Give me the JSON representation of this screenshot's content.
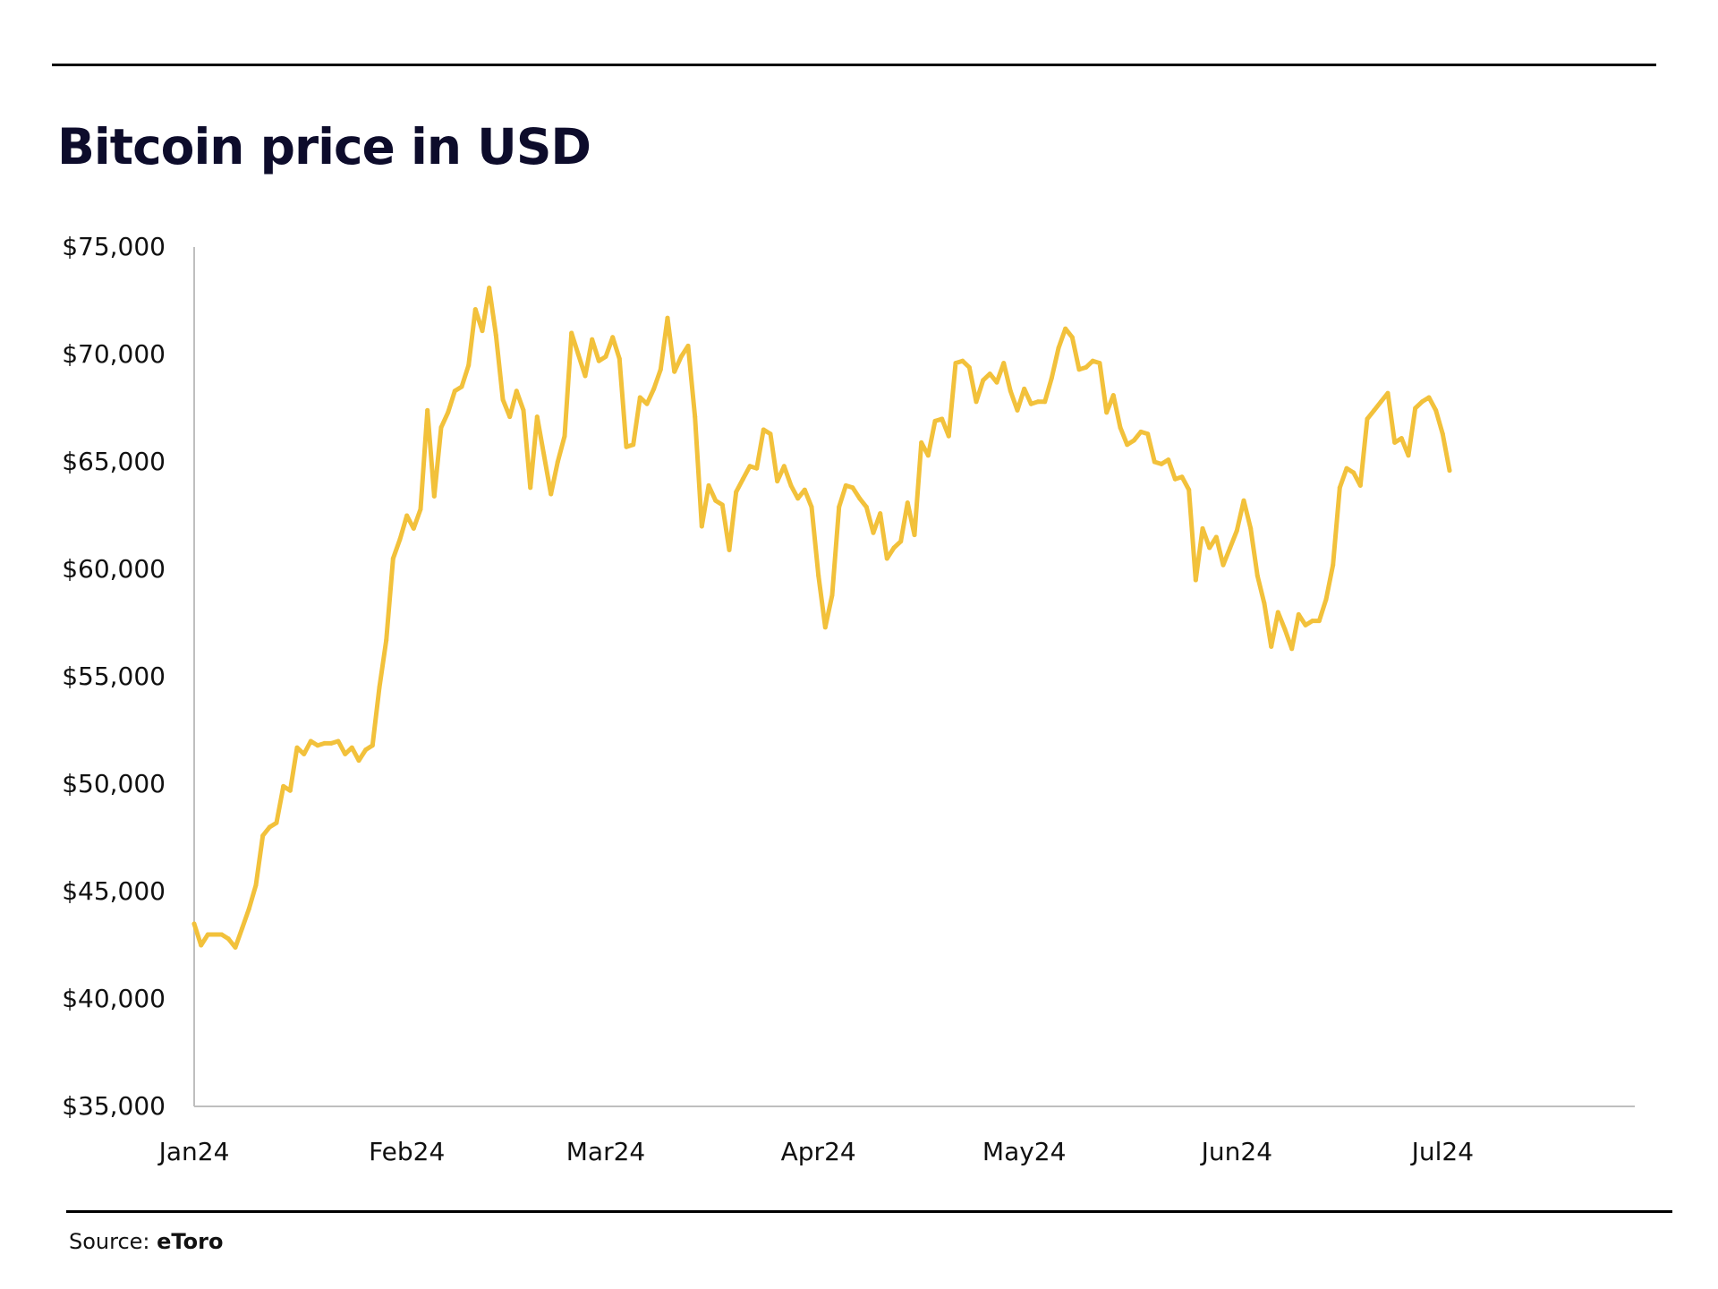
{
  "chart_data": {
    "type": "line",
    "title": "Bitcoin price in USD",
    "xlabel": "",
    "ylabel": "",
    "ylim": [
      35000,
      75000
    ],
    "y_ticks": [
      "$75,000",
      "$70,000",
      "$65,000",
      "$60,000",
      "$55,000",
      "$50,000",
      "$45,000",
      "$40,000",
      "$35,000"
    ],
    "y_tick_values": [
      75000,
      70000,
      65000,
      60000,
      55000,
      50000,
      45000,
      40000,
      35000
    ],
    "x_ticks": [
      "Jan24",
      "Feb24",
      "Mar24",
      "Apr24",
      "May24",
      "Jun24",
      "Jul24"
    ],
    "x_range": [
      "2024-01-01",
      "2024-07-29"
    ],
    "grid": false,
    "series": [
      {
        "color": "#f2c13b",
        "points": [
          [
            "2024-01-01",
            43500
          ],
          [
            "2024-01-02",
            42500
          ],
          [
            "2024-01-03",
            43000
          ],
          [
            "2024-01-04",
            43000
          ],
          [
            "2024-01-05",
            43000
          ],
          [
            "2024-01-06",
            42800
          ],
          [
            "2024-01-07",
            42400
          ],
          [
            "2024-01-08",
            43300
          ],
          [
            "2024-01-09",
            44200
          ],
          [
            "2024-01-10",
            45300
          ],
          [
            "2024-01-11",
            47600
          ],
          [
            "2024-01-12",
            48000
          ],
          [
            "2024-01-13",
            48200
          ],
          [
            "2024-01-14",
            49900
          ],
          [
            "2024-01-15",
            49700
          ],
          [
            "2024-01-16",
            51700
          ],
          [
            "2024-01-17",
            51400
          ],
          [
            "2024-01-18",
            52000
          ],
          [
            "2024-01-19",
            51800
          ],
          [
            "2024-01-20",
            51900
          ],
          [
            "2024-01-21",
            51900
          ],
          [
            "2024-01-22",
            52000
          ],
          [
            "2024-01-23",
            51400
          ],
          [
            "2024-01-24",
            51700
          ],
          [
            "2024-01-25",
            51100
          ],
          [
            "2024-01-26",
            51600
          ],
          [
            "2024-01-27",
            51800
          ],
          [
            "2024-01-28",
            54500
          ],
          [
            "2024-01-29",
            56700
          ],
          [
            "2024-01-30",
            60500
          ],
          [
            "2024-01-31",
            61400
          ],
          [
            "2024-02-01",
            62500
          ],
          [
            "2024-02-02",
            61900
          ],
          [
            "2024-02-03",
            62800
          ],
          [
            "2024-02-04",
            67400
          ],
          [
            "2024-02-05",
            63400
          ],
          [
            "2024-02-06",
            66600
          ],
          [
            "2024-02-07",
            67300
          ],
          [
            "2024-02-08",
            68300
          ],
          [
            "2024-02-09",
            68500
          ],
          [
            "2024-02-10",
            69500
          ],
          [
            "2024-02-11",
            72100
          ],
          [
            "2024-02-12",
            71100
          ],
          [
            "2024-02-13",
            73100
          ],
          [
            "2024-02-14",
            70900
          ],
          [
            "2024-02-15",
            67900
          ],
          [
            "2024-02-16",
            67100
          ],
          [
            "2024-02-17",
            68300
          ],
          [
            "2024-02-18",
            67400
          ],
          [
            "2024-02-19",
            63800
          ],
          [
            "2024-02-20",
            67100
          ],
          [
            "2024-02-21",
            65300
          ],
          [
            "2024-02-22",
            63500
          ],
          [
            "2024-02-23",
            65000
          ],
          [
            "2024-02-24",
            66200
          ],
          [
            "2024-02-25",
            71000
          ],
          [
            "2024-02-26",
            70000
          ],
          [
            "2024-02-27",
            69000
          ],
          [
            "2024-02-28",
            70700
          ],
          [
            "2024-02-29",
            69700
          ],
          [
            "2024-03-01",
            69900
          ],
          [
            "2024-03-02",
            70800
          ],
          [
            "2024-03-03",
            69800
          ],
          [
            "2024-03-04",
            65700
          ],
          [
            "2024-03-05",
            65800
          ],
          [
            "2024-03-06",
            68000
          ],
          [
            "2024-03-07",
            67700
          ],
          [
            "2024-03-08",
            68400
          ],
          [
            "2024-03-09",
            69300
          ],
          [
            "2024-03-10",
            71700
          ],
          [
            "2024-03-11",
            69200
          ],
          [
            "2024-03-12",
            69900
          ],
          [
            "2024-03-13",
            70400
          ],
          [
            "2024-03-14",
            67100
          ],
          [
            "2024-03-15",
            62000
          ],
          [
            "2024-03-16",
            63900
          ],
          [
            "2024-03-17",
            63200
          ],
          [
            "2024-03-18",
            63000
          ],
          [
            "2024-03-19",
            60900
          ],
          [
            "2024-03-20",
            63600
          ],
          [
            "2024-03-21",
            64200
          ],
          [
            "2024-03-22",
            64800
          ],
          [
            "2024-03-23",
            64700
          ],
          [
            "2024-03-24",
            66500
          ],
          [
            "2024-03-25",
            66300
          ],
          [
            "2024-03-26",
            64100
          ],
          [
            "2024-03-27",
            64800
          ],
          [
            "2024-03-28",
            63900
          ],
          [
            "2024-03-29",
            63300
          ],
          [
            "2024-03-30",
            63700
          ],
          [
            "2024-03-31",
            62900
          ],
          [
            "2024-04-01",
            59700
          ],
          [
            "2024-04-02",
            57300
          ],
          [
            "2024-04-03",
            58800
          ],
          [
            "2024-04-04",
            62900
          ],
          [
            "2024-04-05",
            63900
          ],
          [
            "2024-04-06",
            63800
          ],
          [
            "2024-04-07",
            63300
          ],
          [
            "2024-04-08",
            62900
          ],
          [
            "2024-04-09",
            61700
          ],
          [
            "2024-04-10",
            62600
          ],
          [
            "2024-04-11",
            60500
          ],
          [
            "2024-04-12",
            61000
          ],
          [
            "2024-04-13",
            61300
          ],
          [
            "2024-04-14",
            63100
          ],
          [
            "2024-04-15",
            61600
          ],
          [
            "2024-04-16",
            65900
          ],
          [
            "2024-04-17",
            65300
          ],
          [
            "2024-04-18",
            66900
          ],
          [
            "2024-04-19",
            67000
          ],
          [
            "2024-04-20",
            66200
          ],
          [
            "2024-04-21",
            69600
          ],
          [
            "2024-04-22",
            69700
          ],
          [
            "2024-04-23",
            69400
          ],
          [
            "2024-04-24",
            67800
          ],
          [
            "2024-04-25",
            68800
          ],
          [
            "2024-04-26",
            69100
          ],
          [
            "2024-04-27",
            68700
          ],
          [
            "2024-04-28",
            69600
          ],
          [
            "2024-04-29",
            68300
          ],
          [
            "2024-04-30",
            67400
          ],
          [
            "2024-05-01",
            68400
          ],
          [
            "2024-05-02",
            67700
          ],
          [
            "2024-05-03",
            67800
          ],
          [
            "2024-05-04",
            67800
          ],
          [
            "2024-05-05",
            68900
          ],
          [
            "2024-05-06",
            70300
          ],
          [
            "2024-05-07",
            71200
          ],
          [
            "2024-05-08",
            70800
          ],
          [
            "2024-05-09",
            69300
          ],
          [
            "2024-05-10",
            69400
          ],
          [
            "2024-05-11",
            69700
          ],
          [
            "2024-05-12",
            69600
          ],
          [
            "2024-05-13",
            67300
          ],
          [
            "2024-05-14",
            68100
          ],
          [
            "2024-05-15",
            66600
          ],
          [
            "2024-05-16",
            65800
          ],
          [
            "2024-05-17",
            66000
          ],
          [
            "2024-05-18",
            66400
          ],
          [
            "2024-05-19",
            66300
          ],
          [
            "2024-05-20",
            65000
          ],
          [
            "2024-05-21",
            64900
          ],
          [
            "2024-05-22",
            65100
          ],
          [
            "2024-05-23",
            64200
          ],
          [
            "2024-05-24",
            64300
          ],
          [
            "2024-05-25",
            63700
          ],
          [
            "2024-05-26",
            59500
          ],
          [
            "2024-05-27",
            61900
          ],
          [
            "2024-05-28",
            61000
          ],
          [
            "2024-05-29",
            61500
          ],
          [
            "2024-05-30",
            60200
          ],
          [
            "2024-05-31",
            61000
          ],
          [
            "2024-06-01",
            61800
          ],
          [
            "2024-06-02",
            63200
          ],
          [
            "2024-06-03",
            61900
          ],
          [
            "2024-06-04",
            59700
          ],
          [
            "2024-06-05",
            58400
          ],
          [
            "2024-06-06",
            56400
          ],
          [
            "2024-06-07",
            58000
          ],
          [
            "2024-06-08",
            57200
          ],
          [
            "2024-06-09",
            56300
          ],
          [
            "2024-06-10",
            57900
          ],
          [
            "2024-06-11",
            57400
          ],
          [
            "2024-06-12",
            57600
          ],
          [
            "2024-06-13",
            57600
          ],
          [
            "2024-06-14",
            58600
          ],
          [
            "2024-06-15",
            60200
          ],
          [
            "2024-06-16",
            63800
          ],
          [
            "2024-06-17",
            64700
          ],
          [
            "2024-06-18",
            64500
          ],
          [
            "2024-06-19",
            63900
          ],
          [
            "2024-06-20",
            67000
          ],
          [
            "2024-06-21",
            67400
          ],
          [
            "2024-06-22",
            67800
          ],
          [
            "2024-06-23",
            68200
          ],
          [
            "2024-06-24",
            65900
          ],
          [
            "2024-06-25",
            66100
          ],
          [
            "2024-06-26",
            65300
          ],
          [
            "2024-06-27",
            67500
          ],
          [
            "2024-06-28",
            67800
          ],
          [
            "2024-06-29",
            68000
          ],
          [
            "2024-06-30",
            67400
          ],
          [
            "2024-07-01",
            66300
          ],
          [
            "2024-07-02",
            64600
          ]
        ]
      }
    ]
  },
  "footer": {
    "source_label": "Source: ",
    "source_name": "eToro"
  },
  "colors": {
    "line": "#f2c13b",
    "title": "#0d0c2b",
    "axis": "#bfbfbf",
    "rule": "#000000"
  }
}
